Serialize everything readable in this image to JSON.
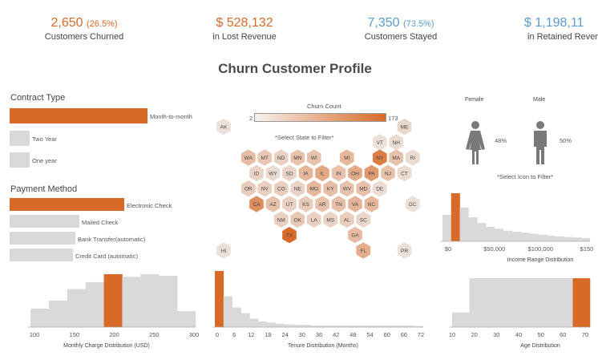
{
  "kpis": {
    "churned_value": "2,650",
    "churned_pct": "(26.5%)",
    "churned_label": "Customers Churned",
    "lost_revenue_value": "$ 528,132",
    "lost_revenue_label": "in Lost Revenue",
    "stayed_value": "7,350",
    "stayed_pct": "(73.5%)",
    "stayed_label": "Customers Stayed",
    "retained_value": "$ 1,198,11",
    "retained_label": "in Retained Rever"
  },
  "page_title": "Churn Customer Profile",
  "contract": {
    "title": "Contract Type",
    "items": [
      {
        "label": "Month-to-month",
        "fraction": 1.0,
        "highlight": true
      },
      {
        "label": "Two Year",
        "fraction": 0.14,
        "highlight": false
      },
      {
        "label": "One year",
        "fraction": 0.14,
        "highlight": false
      }
    ]
  },
  "payment": {
    "title": "Payment Method",
    "items": [
      {
        "label": "Electronic Check",
        "fraction": 1.0,
        "highlight": true
      },
      {
        "label": "Mailed Check",
        "fraction": 0.59,
        "highlight": false
      },
      {
        "label": "Bank Transfer(automatic)",
        "fraction": 0.57,
        "highlight": false
      },
      {
        "label": "Credit Card (automatic)",
        "fraction": 0.54,
        "highlight": false
      }
    ]
  },
  "map": {
    "legend_title": "Churn Count",
    "legend_min": "2",
    "legend_max": "173",
    "hint": "*Select State to Filter*",
    "states": [
      {
        "code": "AK",
        "col": 0,
        "row": 0,
        "v": 0.05
      },
      {
        "code": "ME",
        "col": 11,
        "row": 0,
        "v": 0.12
      },
      {
        "code": "VT",
        "col": 9.5,
        "row": 1,
        "v": 0.05
      },
      {
        "code": "NH",
        "col": 10.5,
        "row": 1,
        "v": 0.08
      },
      {
        "code": "WA",
        "col": 1.5,
        "row": 2,
        "v": 0.35
      },
      {
        "code": "MT",
        "col": 2.5,
        "row": 2,
        "v": 0.25
      },
      {
        "code": "ND",
        "col": 3.5,
        "row": 2,
        "v": 0.18
      },
      {
        "code": "MN",
        "col": 4.5,
        "row": 2,
        "v": 0.3
      },
      {
        "code": "WI",
        "col": 5.5,
        "row": 2,
        "v": 0.28
      },
      {
        "code": "MI",
        "col": 7.5,
        "row": 2,
        "v": 0.38
      },
      {
        "code": "NY",
        "col": 9.5,
        "row": 2,
        "v": 0.85
      },
      {
        "code": "MA",
        "col": 10.5,
        "row": 2,
        "v": 0.3
      },
      {
        "code": "RI",
        "col": 11.5,
        "row": 2,
        "v": 0.08
      },
      {
        "code": "ID",
        "col": 2,
        "row": 3,
        "v": 0.15
      },
      {
        "code": "WY",
        "col": 3,
        "row": 3,
        "v": 0.1
      },
      {
        "code": "SD",
        "col": 4,
        "row": 3,
        "v": 0.15
      },
      {
        "code": "IA",
        "col": 5,
        "row": 3,
        "v": 0.38
      },
      {
        "code": "IL",
        "col": 6,
        "row": 3,
        "v": 0.5
      },
      {
        "code": "IN",
        "col": 7,
        "row": 3,
        "v": 0.3
      },
      {
        "code": "OH",
        "col": 8,
        "row": 3,
        "v": 0.48
      },
      {
        "code": "PA",
        "col": 9,
        "row": 3,
        "v": 0.62
      },
      {
        "code": "NJ",
        "col": 10,
        "row": 3,
        "v": 0.3
      },
      {
        "code": "CT",
        "col": 11,
        "row": 3,
        "v": 0.1
      },
      {
        "code": "OR",
        "col": 1.5,
        "row": 4,
        "v": 0.22
      },
      {
        "code": "NV",
        "col": 2.5,
        "row": 4,
        "v": 0.18
      },
      {
        "code": "CO",
        "col": 3.5,
        "row": 4,
        "v": 0.2
      },
      {
        "code": "NE",
        "col": 4.5,
        "row": 4,
        "v": 0.15
      },
      {
        "code": "MO",
        "col": 5.5,
        "row": 4,
        "v": 0.38
      },
      {
        "code": "KY",
        "col": 6.5,
        "row": 4,
        "v": 0.32
      },
      {
        "code": "WV",
        "col": 7.5,
        "row": 4,
        "v": 0.28
      },
      {
        "code": "MD",
        "col": 8.5,
        "row": 4,
        "v": 0.3
      },
      {
        "code": "DE",
        "col": 9.5,
        "row": 4,
        "v": 0.08
      },
      {
        "code": "CA",
        "col": 2,
        "row": 5,
        "v": 0.72
      },
      {
        "code": "AZ",
        "col": 3,
        "row": 5,
        "v": 0.3
      },
      {
        "code": "UT",
        "col": 4,
        "row": 5,
        "v": 0.18
      },
      {
        "code": "KS",
        "col": 5,
        "row": 5,
        "v": 0.22
      },
      {
        "code": "AR",
        "col": 6,
        "row": 5,
        "v": 0.3
      },
      {
        "code": "TN",
        "col": 7,
        "row": 5,
        "v": 0.32
      },
      {
        "code": "VA",
        "col": 8,
        "row": 5,
        "v": 0.4
      },
      {
        "code": "NC",
        "col": 9,
        "row": 5,
        "v": 0.38
      },
      {
        "code": "DC",
        "col": 11.5,
        "row": 5,
        "v": 0.05
      },
      {
        "code": "NM",
        "col": 3.5,
        "row": 6,
        "v": 0.18
      },
      {
        "code": "OK",
        "col": 4.5,
        "row": 6,
        "v": 0.25
      },
      {
        "code": "LA",
        "col": 5.5,
        "row": 6,
        "v": 0.18
      },
      {
        "code": "MS",
        "col": 6.5,
        "row": 6,
        "v": 0.15
      },
      {
        "code": "AL",
        "col": 7.5,
        "row": 6,
        "v": 0.2
      },
      {
        "code": "SC",
        "col": 8.5,
        "row": 6,
        "v": 0.12
      },
      {
        "code": "TX",
        "col": 4,
        "row": 7,
        "v": 1.0
      },
      {
        "code": "GA",
        "col": 8,
        "row": 7,
        "v": 0.35
      },
      {
        "code": "HI",
        "col": 0,
        "row": 8,
        "v": 0.05
      },
      {
        "code": "FL",
        "col": 8.5,
        "row": 8,
        "v": 0.45
      },
      {
        "code": "PR",
        "col": 11,
        "row": 8,
        "v": 0.05
      }
    ]
  },
  "gender": {
    "female_label": "Female",
    "male_label": "Male",
    "female_pct": "48%",
    "male_pct": "50%",
    "hint": "*Select Icon to Filter*"
  },
  "chart_data": [
    {
      "type": "bar",
      "title": "Income Range Distribution",
      "xlabel": "Income Range Distribution",
      "tick_labels": [
        "$0",
        "$50,000",
        "$100,000",
        "$150"
      ],
      "values": [
        55,
        100,
        70,
        50,
        38,
        30,
        26,
        22,
        20,
        18,
        16,
        14,
        12,
        10,
        9,
        8,
        7
      ],
      "highlight_index": 1
    },
    {
      "type": "bar",
      "title": "Monthly Charge Distribution (USD)",
      "xlabel": "Monthly Charge Distribution (USD)",
      "tick_labels": [
        "100",
        "150",
        "200",
        "250",
        "300"
      ],
      "values": [
        35,
        50,
        72,
        85,
        100,
        95,
        100,
        97,
        30
      ],
      "highlight_index": 4
    },
    {
      "type": "bar",
      "title": "Tenure Distribution (Months)",
      "xlabel": "Tenure Distribution (Months)",
      "tick_labels": [
        "0",
        "6",
        "12",
        "18",
        "24",
        "30",
        "36",
        "42",
        "48",
        "54",
        "60",
        "66",
        "72"
      ],
      "values": [
        100,
        55,
        35,
        25,
        15,
        10,
        8,
        6,
        5,
        4,
        4,
        3,
        3,
        3,
        3,
        3,
        3,
        3,
        3,
        3,
        3,
        3,
        3,
        2
      ],
      "highlight_index": 0
    },
    {
      "type": "bar",
      "title": "Age Distribution",
      "xlabel": "Age Distribution",
      "tick_labels": [
        "10",
        "20",
        "30",
        "40",
        "50",
        "60",
        "70"
      ],
      "values": [
        30,
        100,
        100,
        100,
        100,
        100,
        100,
        100
      ],
      "highlight_index": 7
    }
  ],
  "colors": {
    "accent": "#d86a28",
    "neutral": "#d9d9d9",
    "blue": "#5b9bd0",
    "icon": "#7a7a7a"
  }
}
